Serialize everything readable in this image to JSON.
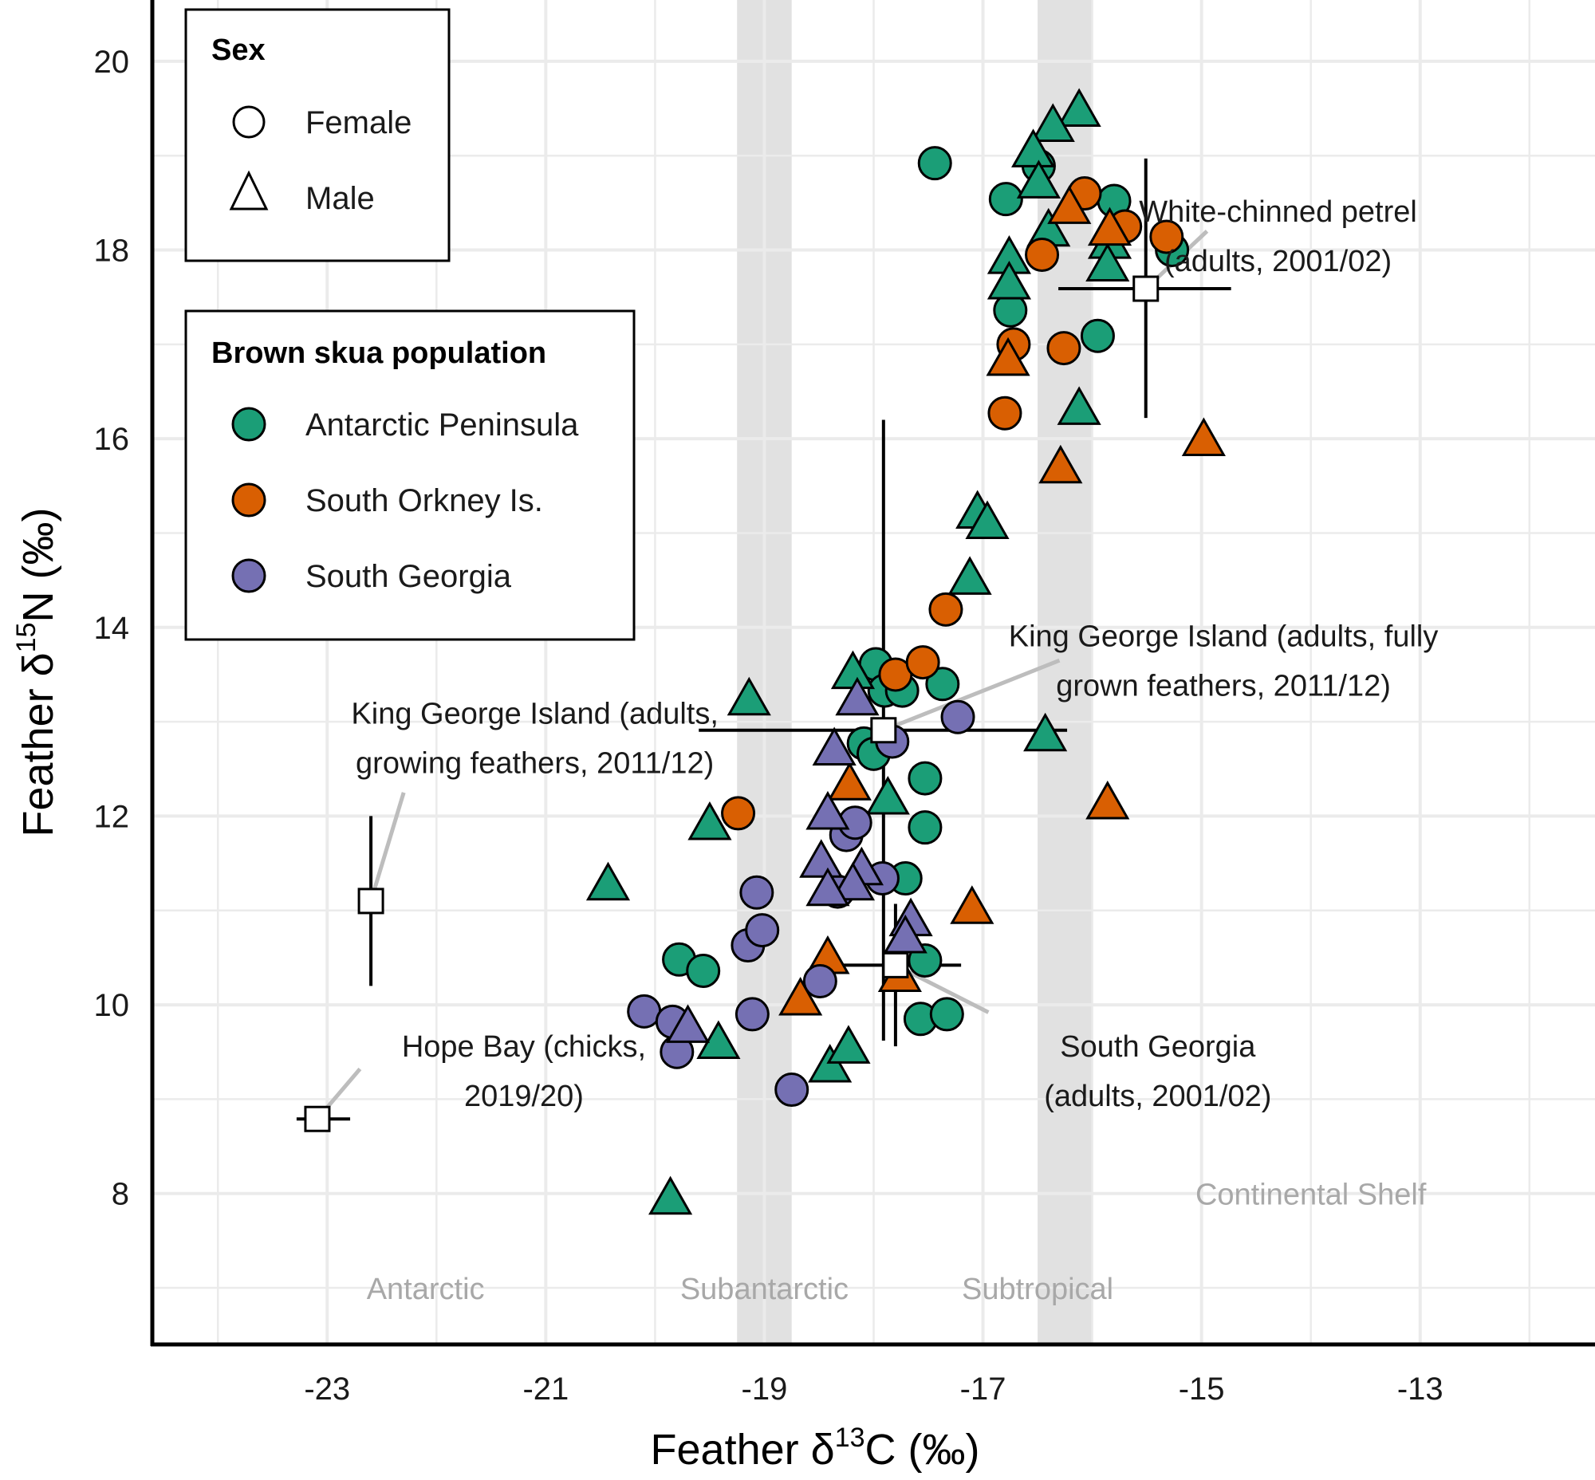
{
  "chart_data": {
    "type": "scatter",
    "title": "",
    "xlabel": "Feather δ13C (‰)",
    "ylabel": "Feather δ15N (‰)",
    "xlabel_parts": {
      "pre": "Feather δ",
      "sup": "13",
      "post": "C (‰)"
    },
    "ylabel_parts": {
      "pre": "Feather δ",
      "sup": "15",
      "post": "N (‰)"
    },
    "xlim": [
      -24.6,
      -11.4
    ],
    "ylim": [
      6.4,
      20.65
    ],
    "x_ticks": [
      -23,
      -21,
      -19,
      -17,
      -15,
      -13
    ],
    "x_tick_labels": [
      "-23",
      "-21",
      "-19",
      "-17",
      "-15",
      "-13"
    ],
    "y_ticks": [
      8,
      10,
      12,
      14,
      16,
      18,
      20
    ],
    "y_tick_labels": [
      "8",
      "10",
      "12",
      "14",
      "16",
      "18",
      "20"
    ],
    "grid": true,
    "colors": {
      "Antarctic Peninsula": "#1B9E77",
      "South Orkney Is.": "#D95F02",
      "South Georgia": "#7570B3"
    },
    "shaded_bands": [
      {
        "x_from": -19.25,
        "x_to": -18.75
      },
      {
        "x_from": -16.5,
        "x_to": -16.0
      }
    ],
    "region_labels": [
      {
        "text": "Antarctic",
        "x": -22.1,
        "y": 7.0
      },
      {
        "text": "Subantarctic",
        "x": -19.0,
        "y": 7.0
      },
      {
        "text": "Subtropical",
        "x": -16.5,
        "y": 7.0
      },
      {
        "text": "Continental Shelf",
        "x": -14.0,
        "y": 8.0
      }
    ],
    "legends": [
      {
        "title": "Sex",
        "entries": [
          {
            "label": "Female",
            "shape": "circle"
          },
          {
            "label": "Male",
            "shape": "triangle"
          }
        ]
      },
      {
        "title": "Brown skua population",
        "entries": [
          {
            "label": "Antarctic Peninsula",
            "shape": "circle",
            "color": "#1B9E77"
          },
          {
            "label": "South Orkney Is.",
            "shape": "circle",
            "color": "#D95F02"
          },
          {
            "label": "South Georgia",
            "shape": "circle",
            "color": "#7570B3"
          }
        ]
      }
    ],
    "series": [
      {
        "name": "Antarctic Peninsula",
        "sex": "Female",
        "shape": "circle",
        "points": [
          [
            -17.44,
            18.92
          ],
          [
            -16.79,
            18.54
          ],
          [
            -16.49,
            18.89
          ],
          [
            -16.75,
            17.36
          ],
          [
            -15.8,
            18.52
          ],
          [
            -15.27,
            18.0
          ],
          [
            -15.95,
            17.09
          ],
          [
            -17.98,
            13.61
          ],
          [
            -17.9,
            13.33
          ],
          [
            -17.74,
            13.33
          ],
          [
            -17.37,
            13.4
          ],
          [
            -18.09,
            12.77
          ],
          [
            -18.0,
            12.66
          ],
          [
            -17.53,
            12.4
          ],
          [
            -17.53,
            11.88
          ],
          [
            -17.71,
            11.34
          ],
          [
            -17.53,
            10.47
          ],
          [
            -17.57,
            9.85
          ],
          [
            -17.33,
            9.9
          ],
          [
            -19.78,
            10.48
          ],
          [
            -19.56,
            10.36
          ]
        ]
      },
      {
        "name": "Antarctic Peninsula",
        "sex": "Male",
        "shape": "triangle",
        "points": [
          [
            -16.12,
            19.46
          ],
          [
            -16.36,
            19.3
          ],
          [
            -16.54,
            19.03
          ],
          [
            -16.49,
            18.7
          ],
          [
            -16.4,
            18.19
          ],
          [
            -15.84,
            18.06
          ],
          [
            -15.86,
            17.82
          ],
          [
            -16.76,
            17.9
          ],
          [
            -16.76,
            17.63
          ],
          [
            -16.12,
            16.3
          ],
          [
            -17.05,
            15.2
          ],
          [
            -16.96,
            15.09
          ],
          [
            -17.12,
            14.5
          ],
          [
            -18.19,
            13.5
          ],
          [
            -19.14,
            13.22
          ],
          [
            -16.43,
            12.84
          ],
          [
            -17.87,
            12.17
          ],
          [
            -19.5,
            11.9
          ],
          [
            -20.43,
            11.26
          ],
          [
            -19.42,
            9.58
          ],
          [
            -18.4,
            9.33
          ],
          [
            -18.23,
            9.53
          ],
          [
            -19.86,
            7.93
          ]
        ]
      },
      {
        "name": "South Orkney Is.",
        "sex": "Female",
        "shape": "circle",
        "points": [
          [
            -16.07,
            18.6
          ],
          [
            -15.7,
            18.25
          ],
          [
            -15.32,
            18.14
          ],
          [
            -16.46,
            17.95
          ],
          [
            -16.72,
            17.0
          ],
          [
            -16.26,
            16.96
          ],
          [
            -16.8,
            16.27
          ],
          [
            -17.34,
            14.19
          ],
          [
            -17.8,
            13.5
          ],
          [
            -17.55,
            13.63
          ],
          [
            -19.24,
            12.03
          ]
        ]
      },
      {
        "name": "South Orkney Is.",
        "sex": "Male",
        "shape": "triangle",
        "points": [
          [
            -16.21,
            18.43
          ],
          [
            -15.84,
            18.2
          ],
          [
            -16.77,
            16.82
          ],
          [
            -16.29,
            15.68
          ],
          [
            -14.98,
            15.97
          ],
          [
            -18.22,
            12.32
          ],
          [
            -15.86,
            12.12
          ],
          [
            -17.1,
            11.01
          ],
          [
            -18.42,
            10.48
          ],
          [
            -18.67,
            10.04
          ],
          [
            -17.76,
            10.29
          ]
        ]
      },
      {
        "name": "South Georgia",
        "sex": "Female",
        "shape": "circle",
        "points": [
          [
            -17.23,
            13.05
          ],
          [
            -17.83,
            12.79
          ],
          [
            -18.25,
            11.8
          ],
          [
            -18.17,
            11.93
          ],
          [
            -17.92,
            11.34
          ],
          [
            -18.33,
            11.2
          ],
          [
            -19.07,
            11.19
          ],
          [
            -19.15,
            10.63
          ],
          [
            -19.02,
            10.79
          ],
          [
            -18.49,
            10.25
          ],
          [
            -20.1,
            9.93
          ],
          [
            -19.84,
            9.82
          ],
          [
            -19.8,
            9.5
          ],
          [
            -19.11,
            9.9
          ],
          [
            -18.75,
            9.1
          ]
        ]
      },
      {
        "name": "South Georgia",
        "sex": "Male",
        "shape": "triangle",
        "points": [
          [
            -18.15,
            13.22
          ],
          [
            -18.36,
            12.69
          ],
          [
            -18.42,
            12.01
          ],
          [
            -18.48,
            11.5
          ],
          [
            -18.11,
            11.42
          ],
          [
            -18.19,
            11.26
          ],
          [
            -18.42,
            11.2
          ],
          [
            -17.66,
            10.88
          ],
          [
            -17.71,
            10.7
          ],
          [
            -19.7,
            9.75
          ]
        ]
      }
    ],
    "reference_points": [
      {
        "label_lines": [
          "White-chinned petrel",
          "(adults, 2001/02)"
        ],
        "x": -15.51,
        "y": 17.59,
        "x_err": [
          -16.31,
          -14.73
        ],
        "y_err": [
          16.22,
          18.97
        ],
        "label_x": -14.3,
        "label_y": 18.3,
        "label_anchor": "middle",
        "leader_to": [
          -14.95,
          18.2
        ]
      },
      {
        "label_lines": [
          "King George Island (adults, fully",
          "grown feathers, 2011/12)"
        ],
        "x": -17.91,
        "y": 12.91,
        "x_err": [
          -19.6,
          -16.23
        ],
        "y_err": [
          9.62,
          16.2
        ],
        "label_x": -14.8,
        "label_y": 13.8,
        "label_anchor": "middle",
        "leader_to": [
          -16.3,
          13.65
        ]
      },
      {
        "label_lines": [
          "King George Island (adults,",
          "growing feathers, 2011/12)"
        ],
        "x": -22.6,
        "y": 11.1,
        "x_err": null,
        "y_err": [
          10.2,
          12.0
        ],
        "label_x": -21.1,
        "label_y": 12.98,
        "label_anchor": "middle",
        "leader_to": [
          -22.3,
          12.25
        ]
      },
      {
        "label_lines": [
          "South Georgia",
          "(adults, 2001/02)"
        ],
        "x": -17.8,
        "y": 10.42,
        "x_err": [
          -18.39,
          -17.2
        ],
        "y_err": [
          9.56,
          11.07
        ],
        "label_x": -15.4,
        "label_y": 9.45,
        "label_anchor": "middle",
        "leader_to": [
          -16.95,
          9.92
        ]
      },
      {
        "label_lines": [
          "Hope Bay (chicks,",
          "2019/20)"
        ],
        "x": -23.09,
        "y": 8.79,
        "x_err": [
          -23.28,
          -22.79
        ],
        "y_err": null,
        "label_x": -21.2,
        "label_y": 9.45,
        "label_anchor": "middle",
        "leader_to": [
          -22.7,
          9.32
        ]
      }
    ]
  }
}
